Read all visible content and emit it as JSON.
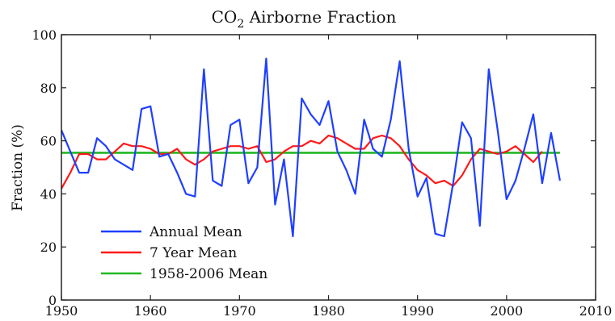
{
  "chart_data": {
    "type": "line",
    "title_main": "CO",
    "title_sub": "2",
    "title_rest": " Airborne Fraction",
    "xlabel": "",
    "ylabel": "Fraction (%)",
    "xlim": [
      1950,
      2010
    ],
    "ylim": [
      0,
      100
    ],
    "xticks": [
      1950,
      1960,
      1970,
      1980,
      1990,
      2000,
      2010
    ],
    "yticks": [
      0,
      20,
      40,
      60,
      80,
      100
    ],
    "grid": false,
    "legend_position": "bottom-left",
    "series": [
      {
        "name": "Annual Mean",
        "color": "#1f3fff",
        "x": [
          1950,
          1951,
          1952,
          1953,
          1954,
          1955,
          1956,
          1957,
          1958,
          1959,
          1960,
          1961,
          1962,
          1963,
          1964,
          1965,
          1966,
          1967,
          1968,
          1969,
          1970,
          1971,
          1972,
          1973,
          1974,
          1975,
          1976,
          1977,
          1978,
          1979,
          1980,
          1981,
          1982,
          1983,
          1984,
          1985,
          1986,
          1987,
          1988,
          1989,
          1990,
          1991,
          1992,
          1993,
          1994,
          1995,
          1996,
          1997,
          1998,
          1999,
          2000,
          2001,
          2002,
          2003,
          2004,
          2005,
          2006
        ],
        "values": [
          64,
          56,
          48,
          48,
          61,
          58,
          53,
          51,
          49,
          72,
          73,
          54,
          55,
          48,
          40,
          39,
          87,
          45,
          43,
          66,
          68,
          44,
          50,
          91,
          36,
          53,
          24,
          76,
          70,
          66,
          75,
          56,
          49,
          40,
          68,
          57,
          54,
          68,
          90,
          57,
          39,
          46,
          25,
          24,
          44,
          67,
          61,
          28,
          87,
          64,
          38,
          45,
          57,
          70,
          44,
          63,
          45
        ]
      },
      {
        "name": "7 Year Mean",
        "color": "#ff1a1a",
        "x": [
          1950,
          1951,
          1952,
          1953,
          1954,
          1955,
          1956,
          1957,
          1958,
          1959,
          1960,
          1961,
          1962,
          1963,
          1964,
          1965,
          1966,
          1967,
          1968,
          1969,
          1970,
          1971,
          1972,
          1973,
          1974,
          1975,
          1976,
          1977,
          1978,
          1979,
          1980,
          1981,
          1982,
          1983,
          1984,
          1985,
          1986,
          1987,
          1988,
          1989,
          1990,
          1991,
          1992,
          1993,
          1994,
          1995,
          1996,
          1997,
          1998,
          1999,
          2000,
          2001,
          2002,
          2003,
          2004
        ],
        "values": [
          42,
          48,
          55,
          55,
          53,
          53,
          56,
          59,
          58,
          58,
          57,
          55,
          55,
          57,
          53,
          51,
          53,
          56,
          57,
          58,
          58,
          57,
          58,
          52,
          53,
          56,
          58,
          58,
          60,
          59,
          62,
          61,
          59,
          57,
          57,
          61,
          62,
          61,
          58,
          53,
          49,
          47,
          44,
          45,
          43,
          47,
          53,
          57,
          56,
          55,
          56,
          58,
          55,
          52,
          56
        ]
      },
      {
        "name": "1958-2006 Mean",
        "color": "#22b822",
        "x": [
          1950,
          2006
        ],
        "values": [
          55.5,
          55.5
        ]
      }
    ]
  }
}
